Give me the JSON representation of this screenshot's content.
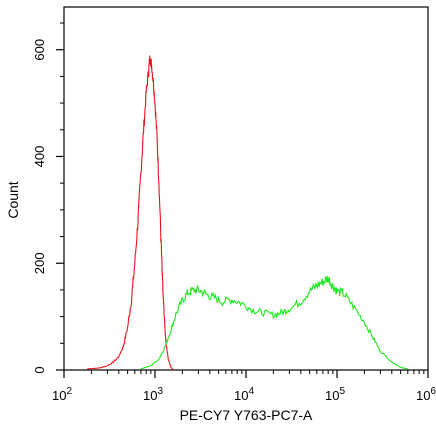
{
  "chart_data": {
    "type": "line",
    "title": "",
    "xlabel": "PE-CY7 Y763-PC7-A",
    "ylabel": "Count",
    "x_scale": "log",
    "xlim": [
      100,
      1000000
    ],
    "ylim": [
      0,
      680
    ],
    "grid": false,
    "x_ticks": [
      {
        "value": 100,
        "base": "10",
        "exp": "2"
      },
      {
        "value": 1000,
        "base": "10",
        "exp": "3"
      },
      {
        "value": 10000,
        "base": "10",
        "exp": "4"
      },
      {
        "value": 100000,
        "base": "10",
        "exp": "5"
      },
      {
        "value": 1000000,
        "base": "10",
        "exp": "6"
      }
    ],
    "y_ticks": [
      {
        "value": 0,
        "label": "0"
      },
      {
        "value": 200,
        "label": "200"
      },
      {
        "value": 400,
        "label": "400"
      },
      {
        "value": 600,
        "label": "600"
      }
    ],
    "series": [
      {
        "color": "#e8141c",
        "x": [
          180,
          250,
          300,
          350,
          400,
          450,
          500,
          550,
          600,
          650,
          700,
          750,
          800,
          850,
          880,
          920,
          960,
          1000,
          1050,
          1100,
          1150,
          1200,
          1260,
          1320,
          1400,
          1500,
          1600
        ],
        "y": [
          2,
          4,
          8,
          15,
          25,
          45,
          80,
          130,
          200,
          280,
          370,
          450,
          520,
          560,
          585,
          570,
          540,
          500,
          440,
          360,
          270,
          180,
          100,
          50,
          20,
          5,
          0
        ]
      },
      {
        "color": "#1ee81e",
        "x": [
          700,
          900,
          1100,
          1300,
          1500,
          1700,
          2000,
          2300,
          2700,
          3200,
          3800,
          4500,
          5500,
          7000,
          9000,
          12000,
          15000,
          20000,
          25000,
          30000,
          40000,
          50000,
          60000,
          70000,
          80000,
          90000,
          100000,
          120000,
          150000,
          200000,
          250000,
          300000,
          400000,
          500000,
          600000
        ],
        "y": [
          2,
          8,
          20,
          45,
          75,
          105,
          130,
          145,
          150,
          148,
          140,
          135,
          128,
          132,
          125,
          112,
          108,
          103,
          108,
          115,
          128,
          148,
          158,
          165,
          172,
          158,
          148,
          142,
          120,
          90,
          60,
          35,
          15,
          5,
          2
        ]
      }
    ]
  }
}
